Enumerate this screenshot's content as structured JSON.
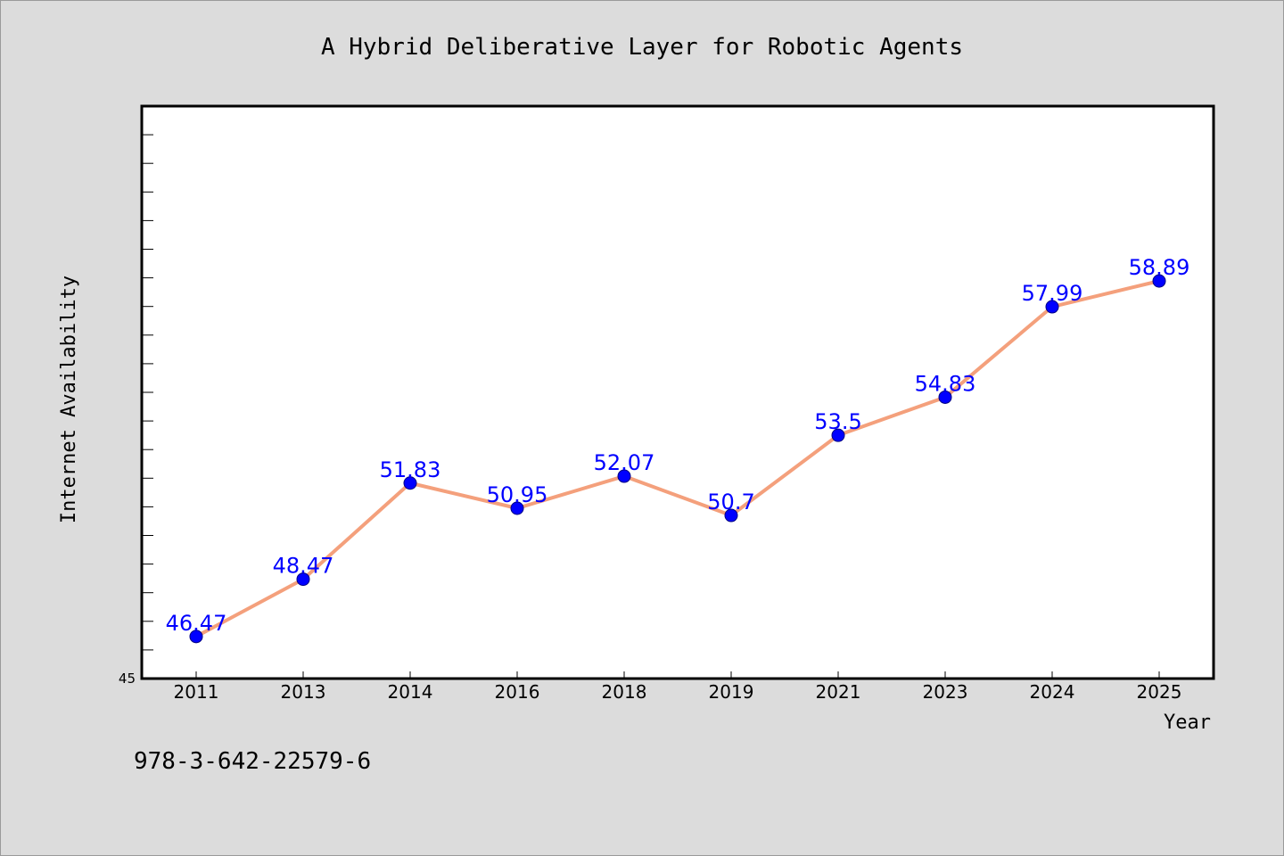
{
  "chart_data": {
    "type": "line",
    "title": "A Hybrid Deliberative Layer for Robotic Agents",
    "xlabel": "Year",
    "ylabel": "Internet Availability",
    "categories": [
      "2011",
      "2013",
      "2014",
      "2016",
      "2018",
      "2019",
      "2021",
      "2023",
      "2024",
      "2025"
    ],
    "series": [
      {
        "values": [
          46.47,
          48.47,
          51.83,
          50.95,
          52.07,
          50.7,
          53.5,
          54.83,
          57.99,
          58.89
        ],
        "data_labels": [
          "46.47",
          "48.47",
          "51.83",
          "50.95",
          "52.07",
          "50.7",
          "53.5",
          "54.83",
          "57.99",
          "58.89"
        ]
      }
    ],
    "ylim": [
      45,
      65
    ],
    "yticks_shown": [
      "45"
    ],
    "grid": false,
    "legend": "none",
    "colors": {
      "line": "#f4a07c",
      "marker": "#0000ff",
      "marker_edge": "#000080",
      "data_label": "#0000ff",
      "plot_background": "#ffffff",
      "figure_background": "#dcdcdc"
    }
  },
  "footnote": "978-3-642-22579-6"
}
